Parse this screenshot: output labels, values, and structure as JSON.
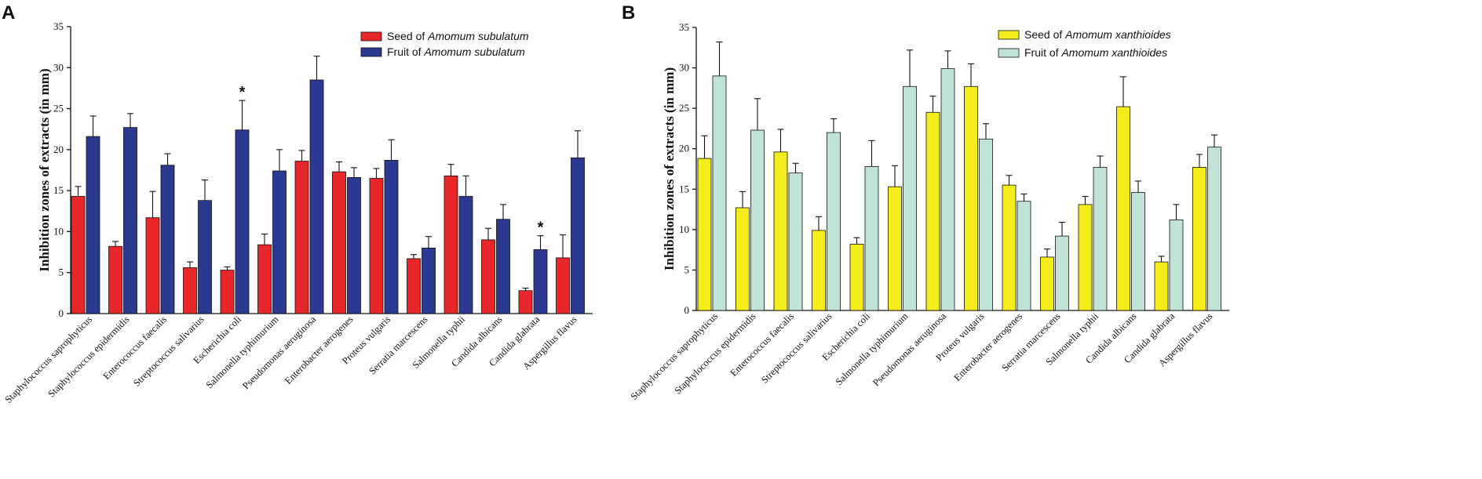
{
  "colors": {
    "seed_A": "#e8272a",
    "fruit_A": "#2b3990",
    "seed_B": "#f5ec1c",
    "fruit_B": "#bfe3d6"
  },
  "chart_data": [
    {
      "type": "bar",
      "panel_label": "A",
      "ylabel": "Inhibition zones of extracts (in mm)",
      "ylim": [
        0,
        35
      ],
      "yticks": [
        0,
        5,
        10,
        15,
        20,
        25,
        30,
        35
      ],
      "legend_position": "top-right",
      "categories": [
        "Staphylococcus saprophyticus",
        "Staphylococcus epidermidis",
        "Enterococcus faecalis",
        "Streptococcus salivarius",
        "Escherichia coli",
        "Salmonella typhimurium",
        "Pseudomonas aeruginosa",
        "Enterobacter aerogenes",
        "Proteus vulgaris",
        "Serratia marcescens",
        "Salmonella typhii",
        "Candida albicans",
        "Candida glabrata",
        "Aspergillus flavus"
      ],
      "series": [
        {
          "name_prefix": "Seed of ",
          "name_species": "Amomum subulatum",
          "color_key": "seed_A",
          "values": [
            14.3,
            8.2,
            11.7,
            5.6,
            5.3,
            8.4,
            18.6,
            17.3,
            16.5,
            6.7,
            16.8,
            9.0,
            2.8,
            6.8
          ],
          "errors": [
            1.2,
            0.6,
            3.2,
            0.7,
            0.4,
            1.3,
            1.3,
            1.2,
            1.2,
            0.5,
            1.4,
            1.4,
            0.3,
            2.8
          ]
        },
        {
          "name_prefix": "Fruit of ",
          "name_species": "Amomum subulatum",
          "color_key": "fruit_A",
          "values": [
            21.6,
            22.7,
            18.1,
            13.8,
            22.4,
            17.4,
            28.5,
            16.6,
            18.7,
            8.0,
            14.3,
            11.5,
            7.8,
            19.0
          ],
          "errors": [
            2.5,
            1.7,
            1.4,
            2.5,
            3.6,
            2.6,
            2.9,
            1.2,
            2.5,
            1.4,
            2.5,
            1.8,
            1.7,
            3.3
          ]
        }
      ],
      "annotations": [
        {
          "text": "*",
          "category_index": 4,
          "series_index": 1
        },
        {
          "text": "*",
          "category_index": 12,
          "series_index": 1
        }
      ]
    },
    {
      "type": "bar",
      "panel_label": "B",
      "ylabel": "Inhibition zones of extracts (in mm)",
      "ylim": [
        0,
        35
      ],
      "yticks": [
        0,
        5,
        10,
        15,
        20,
        25,
        30,
        35
      ],
      "legend_position": "top-right",
      "categories": [
        "Staphylococcus saprophyticus",
        "Staphylococcus epidermidis",
        "Enterococcus faecalis",
        "Streptococcus salivarius",
        "Escherichia coli",
        "Salmonella typhimurium",
        "Pseudomonas aeruginosa",
        "Proteus vulgaris",
        "Enterobacter aerogenes",
        "Serratia marcescens",
        "Salmonella typhii",
        "Candida albicans",
        "Candida glabrata",
        "Aspergillus flavus"
      ],
      "series": [
        {
          "name_prefix": "Seed of ",
          "name_species": "Amomum xanthioides",
          "color_key": "seed_B",
          "values": [
            18.8,
            12.7,
            19.6,
            9.9,
            8.2,
            15.3,
            24.5,
            27.7,
            15.5,
            6.6,
            13.1,
            25.2,
            6.0,
            17.7
          ],
          "errors": [
            2.8,
            2.0,
            2.8,
            1.7,
            0.8,
            2.6,
            2.0,
            2.8,
            1.2,
            1.0,
            1.0,
            3.7,
            0.7,
            1.6
          ]
        },
        {
          "name_prefix": "Fruit of ",
          "name_species": "Amomum xanthioides",
          "color_key": "fruit_B",
          "values": [
            29.0,
            22.3,
            17.0,
            22.0,
            17.8,
            27.7,
            29.9,
            21.2,
            13.5,
            9.2,
            17.7,
            14.6,
            11.2,
            20.2
          ],
          "errors": [
            4.2,
            3.9,
            1.2,
            1.7,
            3.2,
            4.5,
            2.2,
            1.9,
            0.9,
            1.7,
            1.4,
            1.4,
            1.9,
            1.5
          ]
        }
      ],
      "annotations": []
    }
  ]
}
